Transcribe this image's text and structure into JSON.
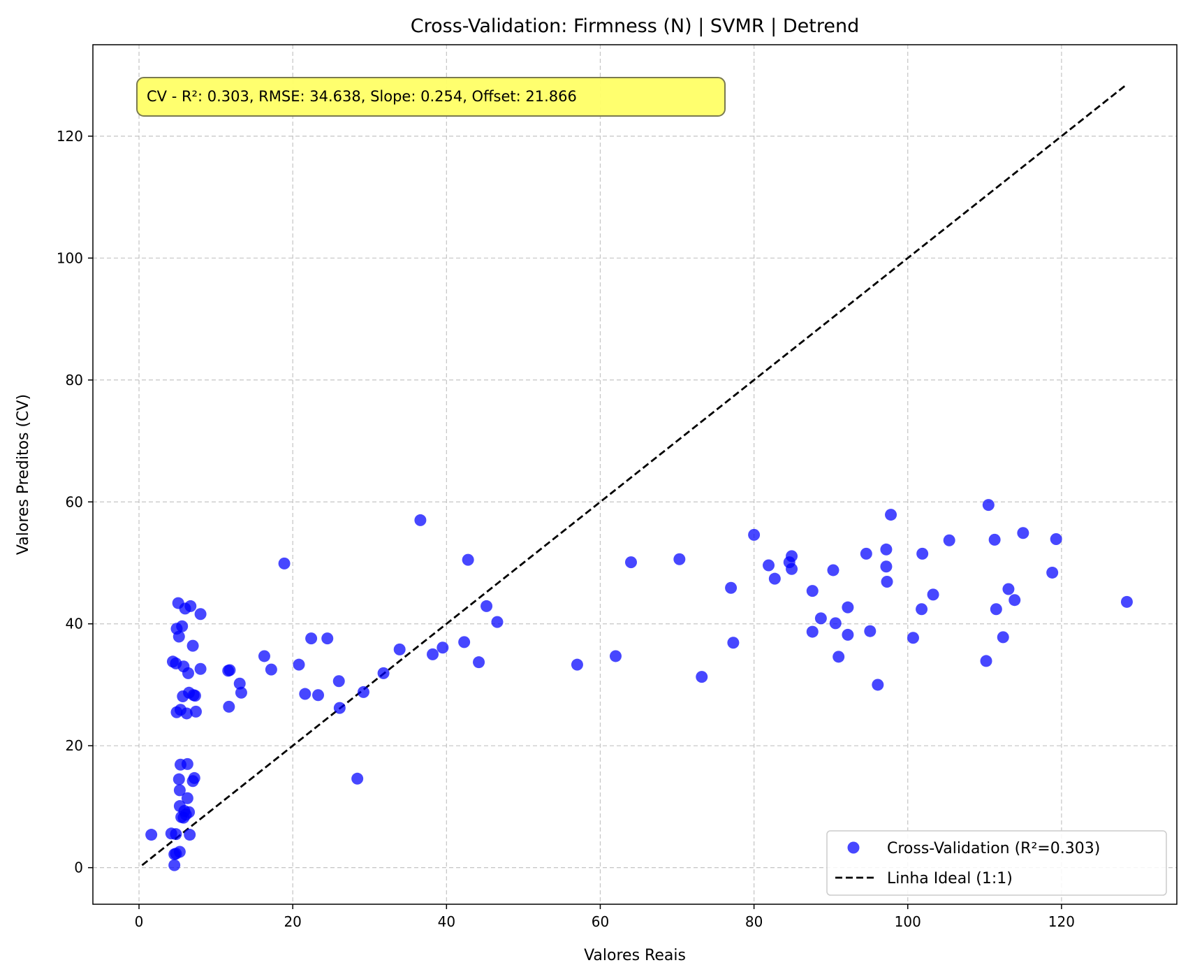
{
  "chart_data": {
    "type": "scatter",
    "title": "Cross-Validation: Firmness (N) | SVMR | Detrend",
    "xlabel": "Valores Reais",
    "ylabel": "Valores Preditos (CV)",
    "xlim": [
      -6,
      135
    ],
    "ylim": [
      -6,
      135
    ],
    "xticks": [
      0,
      20,
      40,
      60,
      80,
      100,
      120
    ],
    "yticks": [
      0,
      20,
      40,
      60,
      80,
      100,
      120
    ],
    "grid": true,
    "legend_position": "bottom-right",
    "colors": {
      "points": "#0000ff",
      "ideal_line": "#000000",
      "annotation_bg": "#ffff66"
    },
    "annotation": "CV - R²: 0.303, RMSE: 34.638, Slope: 0.254, Offset: 21.866",
    "series": [
      {
        "name": "Cross-Validation (R²=0.303)",
        "kind": "scatter",
        "points": [
          [
            1.6,
            5.4
          ],
          [
            4.2,
            5.6
          ],
          [
            4.4,
            33.8
          ],
          [
            4.6,
            0.4
          ],
          [
            4.6,
            2.2
          ],
          [
            4.8,
            2.3
          ],
          [
            4.8,
            5.5
          ],
          [
            4.8,
            33.5
          ],
          [
            4.9,
            25.5
          ],
          [
            4.9,
            39.2
          ],
          [
            5.1,
            43.4
          ],
          [
            5.2,
            37.9
          ],
          [
            5.2,
            14.5
          ],
          [
            5.3,
            2.6
          ],
          [
            5.3,
            12.7
          ],
          [
            5.3,
            10.1
          ],
          [
            5.4,
            25.9
          ],
          [
            5.4,
            16.9
          ],
          [
            5.5,
            8.3
          ],
          [
            5.6,
            39.6
          ],
          [
            5.7,
            28.1
          ],
          [
            5.8,
            33.0
          ],
          [
            5.8,
            8.2
          ],
          [
            5.9,
            9.3
          ],
          [
            6.0,
            42.5
          ],
          [
            6.1,
            8.7
          ],
          [
            6.2,
            25.3
          ],
          [
            6.3,
            17.0
          ],
          [
            6.3,
            11.4
          ],
          [
            6.4,
            31.9
          ],
          [
            6.5,
            28.7
          ],
          [
            6.5,
            9.1
          ],
          [
            6.6,
            5.4
          ],
          [
            6.7,
            42.9
          ],
          [
            7.0,
            14.2
          ],
          [
            7.0,
            36.4
          ],
          [
            7.1,
            28.3
          ],
          [
            7.2,
            14.7
          ],
          [
            7.3,
            28.2
          ],
          [
            7.4,
            25.6
          ],
          [
            8.0,
            41.6
          ],
          [
            8.0,
            32.6
          ],
          [
            11.6,
            32.3
          ],
          [
            11.7,
            26.4
          ],
          [
            11.8,
            32.4
          ],
          [
            13.1,
            30.2
          ],
          [
            13.3,
            28.7
          ],
          [
            16.3,
            34.7
          ],
          [
            17.2,
            32.5
          ],
          [
            18.9,
            49.9
          ],
          [
            20.8,
            33.3
          ],
          [
            21.6,
            28.5
          ],
          [
            22.4,
            37.6
          ],
          [
            23.3,
            28.3
          ],
          [
            24.5,
            37.6
          ],
          [
            26.0,
            30.6
          ],
          [
            26.1,
            26.2
          ],
          [
            28.4,
            14.6
          ],
          [
            29.2,
            28.8
          ],
          [
            31.8,
            31.9
          ],
          [
            33.9,
            35.8
          ],
          [
            36.6,
            57.0
          ],
          [
            38.2,
            35.0
          ],
          [
            39.5,
            36.1
          ],
          [
            42.3,
            37.0
          ],
          [
            42.8,
            50.5
          ],
          [
            44.2,
            33.7
          ],
          [
            45.2,
            42.9
          ],
          [
            46.6,
            40.3
          ],
          [
            57.0,
            33.3
          ],
          [
            62.0,
            34.7
          ],
          [
            64.0,
            50.1
          ],
          [
            70.3,
            50.6
          ],
          [
            73.2,
            31.3
          ],
          [
            77.0,
            45.9
          ],
          [
            77.3,
            36.9
          ],
          [
            80.0,
            54.6
          ],
          [
            81.9,
            49.6
          ],
          [
            82.7,
            47.4
          ],
          [
            84.6,
            50.1
          ],
          [
            84.9,
            51.1
          ],
          [
            84.9,
            49.0
          ],
          [
            87.6,
            45.4
          ],
          [
            87.6,
            38.7
          ],
          [
            88.7,
            40.9
          ],
          [
            90.3,
            48.8
          ],
          [
            90.6,
            40.1
          ],
          [
            91.0,
            34.6
          ],
          [
            92.2,
            42.7
          ],
          [
            92.2,
            38.2
          ],
          [
            94.6,
            51.5
          ],
          [
            95.1,
            38.8
          ],
          [
            96.1,
            30.0
          ],
          [
            97.2,
            52.2
          ],
          [
            97.2,
            49.4
          ],
          [
            97.3,
            46.9
          ],
          [
            97.8,
            57.9
          ],
          [
            100.7,
            37.7
          ],
          [
            101.8,
            42.4
          ],
          [
            101.9,
            51.5
          ],
          [
            103.3,
            44.8
          ],
          [
            105.4,
            53.7
          ],
          [
            110.2,
            33.9
          ],
          [
            110.5,
            59.5
          ],
          [
            111.3,
            53.8
          ],
          [
            111.5,
            42.4
          ],
          [
            112.4,
            37.8
          ],
          [
            113.1,
            45.7
          ],
          [
            113.9,
            43.9
          ],
          [
            115.0,
            54.9
          ],
          [
            118.8,
            48.4
          ],
          [
            119.3,
            53.9
          ],
          [
            128.5,
            43.6
          ]
        ]
      },
      {
        "name": "Linha Ideal (1:1)",
        "kind": "line",
        "style": "dashed",
        "x": [
          0.4,
          128.5
        ],
        "y": [
          0.4,
          128.5
        ]
      }
    ]
  }
}
